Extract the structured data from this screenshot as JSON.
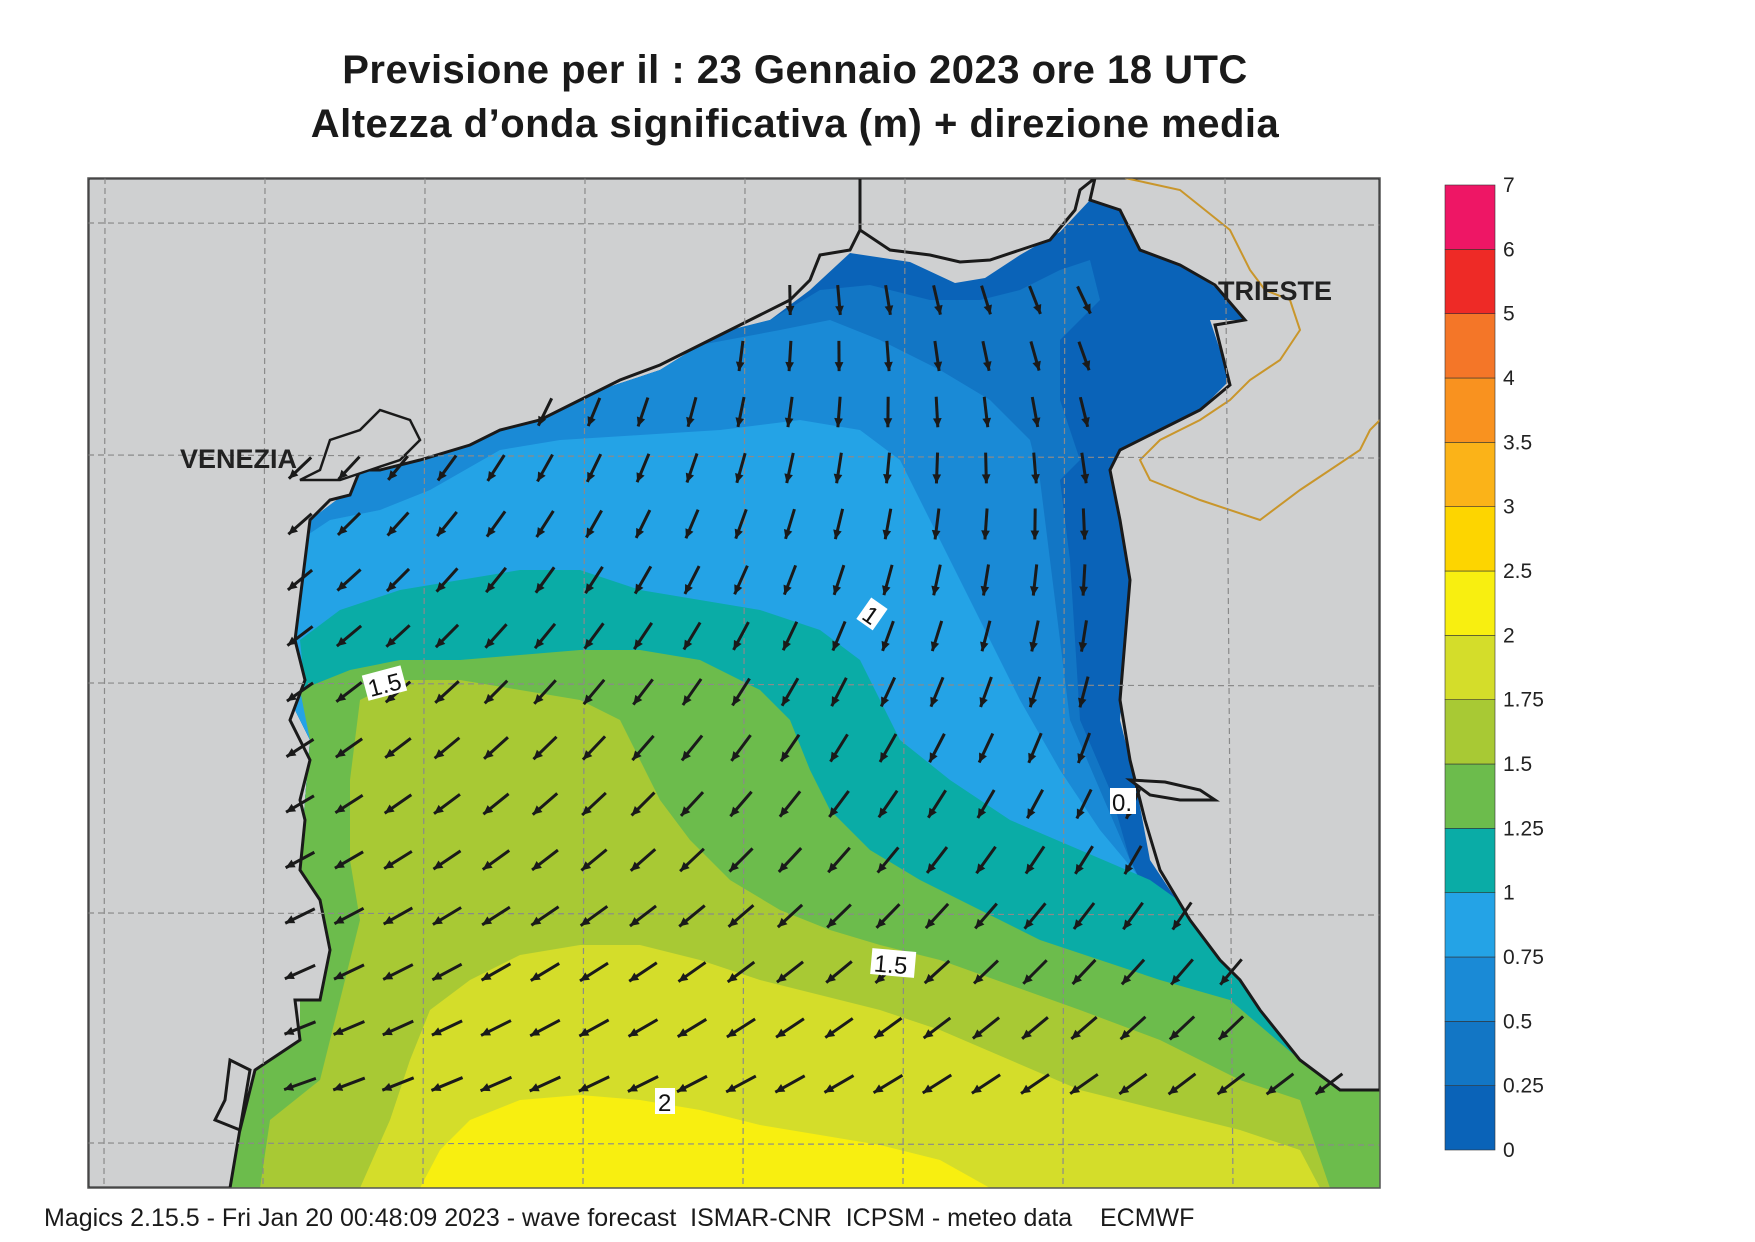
{
  "title": {
    "line1": "Previsione per il  :  23  Gennaio  2023   ore 18 UTC",
    "line2": "Altezza d’onda significativa (m) + direzione media"
  },
  "places": {
    "venezia": "VENEZIA",
    "trieste": "TRIESTE"
  },
  "contour_labels": [
    "1",
    "1.5",
    "0.",
    "1.5",
    "2"
  ],
  "colorbar": {
    "levels": [
      "0",
      "0.25",
      "0.5",
      "0.75",
      "1",
      "1.25",
      "1.5",
      "1.75",
      "2",
      "2.5",
      "3",
      "3.5",
      "4",
      "5",
      "6",
      "7"
    ],
    "colors": [
      "#0a63b8",
      "#1276c5",
      "#1a8ad6",
      "#24a3e6",
      "#0aaca6",
      "#6cbc4c",
      "#a8c934",
      "#d4dd2a",
      "#f8ef10",
      "#fdd500",
      "#fbb318",
      "#f9921f",
      "#f47628",
      "#ee2a26",
      "#ee1665"
    ]
  },
  "colors": {
    "land": "#cfd0d1",
    "coast": "#1a1a1a",
    "border": "#c9962b",
    "grid": "#8a8a8a",
    "arrow": "#1a1a1a"
  },
  "footer": "Magics 2.15.5 - Fri Jan 20 00:48:09 2023 - wave forecast  ISMAR-CNR  ICPSM - meteo data    ECMWF"
}
